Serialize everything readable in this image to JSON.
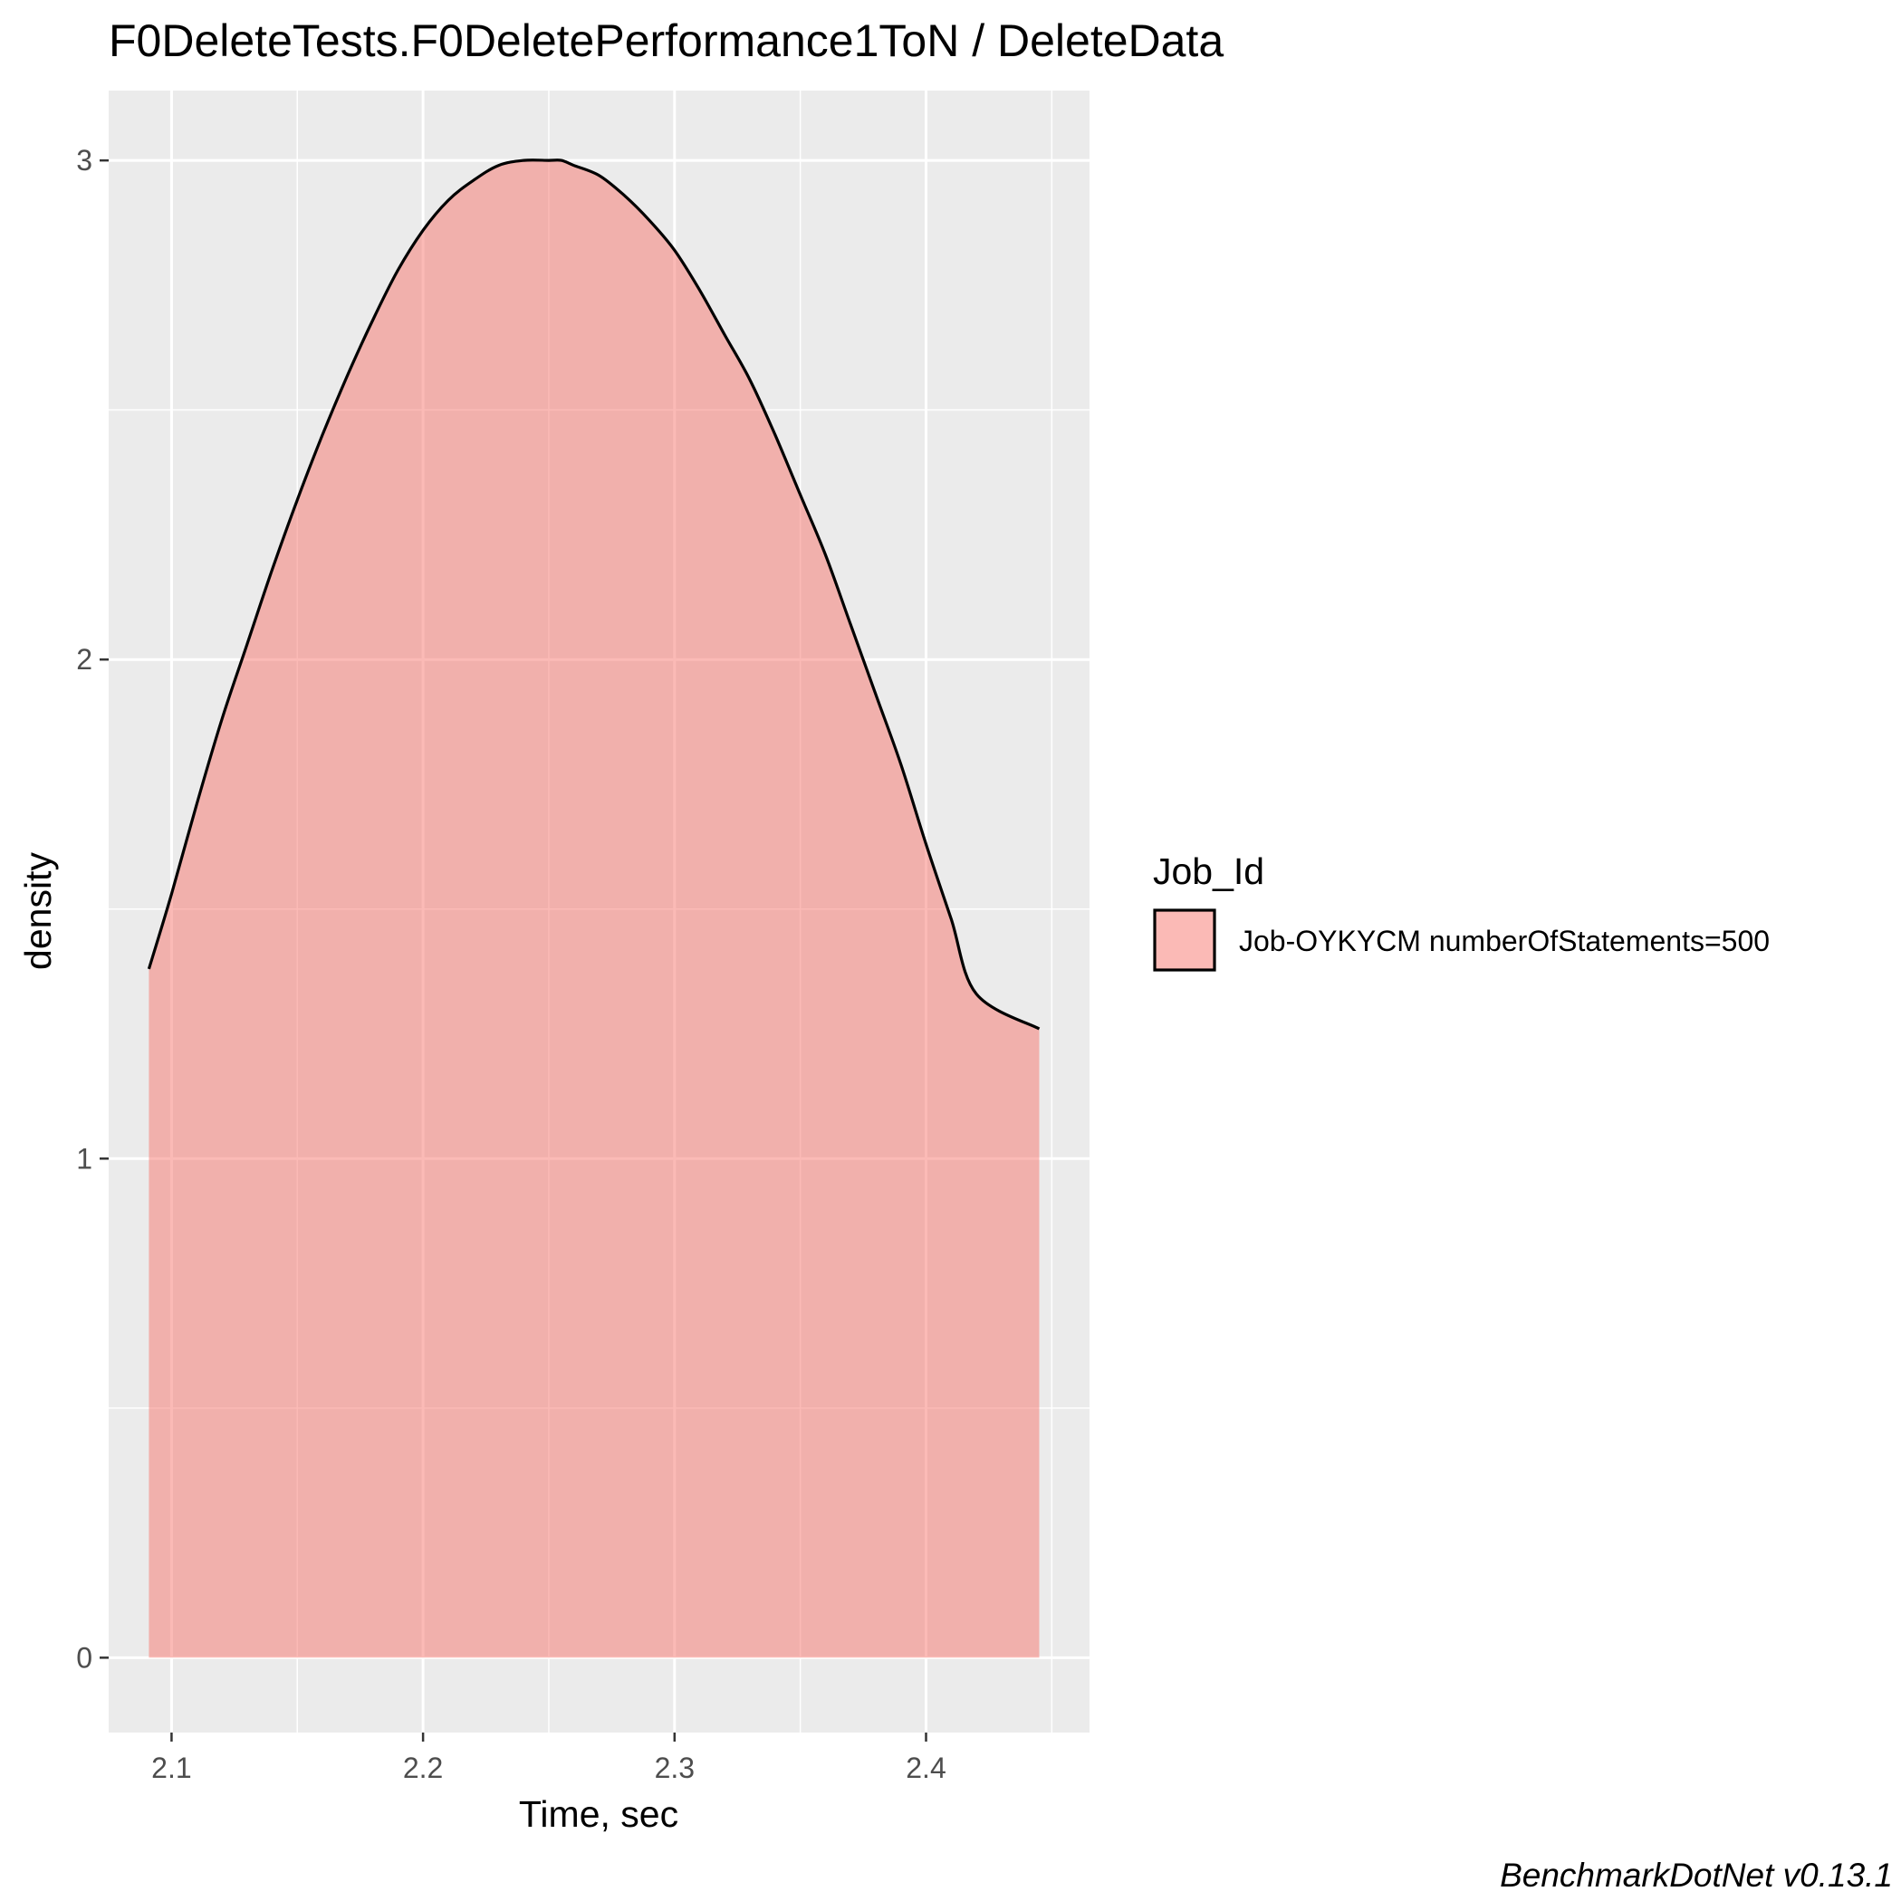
{
  "chart_data": {
    "type": "area",
    "title": "F0DeleteTests.F0DeletePerformance1ToN / DeleteData",
    "xlabel": "Time, sec",
    "ylabel": "density",
    "xlim": [
      2.075,
      2.465
    ],
    "ylim": [
      -0.15,
      3.14
    ],
    "x_ticks": [
      "2.1",
      "2.2",
      "2.3",
      "2.4"
    ],
    "x_tick_values": [
      2.1,
      2.2,
      2.3,
      2.4
    ],
    "y_ticks": [
      "0",
      "1",
      "2",
      "3"
    ],
    "y_tick_values": [
      0,
      1,
      2,
      3
    ],
    "grid": true,
    "legend": {
      "title": "Job_Id",
      "position": "right",
      "entries": [
        "Job-OYKYCM numberOfStatements=500"
      ]
    },
    "series": [
      {
        "name": "Job-OYKYCM numberOfStatements=500",
        "fill": "#F8766D",
        "x": [
          2.091,
          2.1,
          2.11,
          2.12,
          2.13,
          2.14,
          2.15,
          2.16,
          2.17,
          2.18,
          2.19,
          2.2,
          2.21,
          2.22,
          2.23,
          2.24,
          2.25,
          2.255,
          2.26,
          2.27,
          2.28,
          2.29,
          2.3,
          2.31,
          2.32,
          2.33,
          2.34,
          2.35,
          2.36,
          2.37,
          2.38,
          2.39,
          2.4,
          2.41,
          2.42,
          2.43,
          2.445
        ],
        "y": [
          1.38,
          1.53,
          1.71,
          1.88,
          2.03,
          2.18,
          2.32,
          2.45,
          2.57,
          2.68,
          2.78,
          2.86,
          2.92,
          2.96,
          2.99,
          3.0,
          3.0,
          3.0,
          2.99,
          2.97,
          2.93,
          2.88,
          2.82,
          2.74,
          2.65,
          2.56,
          2.45,
          2.33,
          2.21,
          2.07,
          1.93,
          1.79,
          1.63,
          1.48,
          1.33,
          1.45,
          1.26
        ]
      }
    ]
  },
  "caption": "BenchmarkDotNet v0.13.1"
}
